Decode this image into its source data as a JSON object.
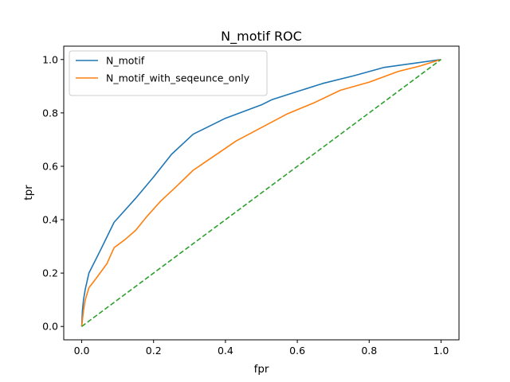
{
  "chart_data": {
    "type": "line",
    "title": "N_motif ROC",
    "xlabel": "fpr",
    "ylabel": "tpr",
    "xlim": [
      -0.05,
      1.05
    ],
    "ylim": [
      -0.05,
      1.05
    ],
    "xticks": [
      "0.0",
      "0.2",
      "0.4",
      "0.6",
      "0.8",
      "1.0"
    ],
    "yticks": [
      "0.0",
      "0.2",
      "0.4",
      "0.6",
      "0.8",
      "1.0"
    ],
    "grid": false,
    "legend_position": "top-left",
    "series": [
      {
        "name": "N_motif",
        "color": "#1f77b4",
        "style": "solid",
        "x": [
          0.0,
          0.002,
          0.005,
          0.01,
          0.02,
          0.05,
          0.09,
          0.15,
          0.2,
          0.25,
          0.31,
          0.4,
          0.5,
          0.53,
          0.6,
          0.67,
          0.76,
          0.84,
          0.92,
          1.0
        ],
        "y": [
          0.0,
          0.06,
          0.1,
          0.14,
          0.2,
          0.28,
          0.39,
          0.48,
          0.56,
          0.645,
          0.72,
          0.78,
          0.83,
          0.85,
          0.88,
          0.91,
          0.94,
          0.97,
          0.985,
          1.0
        ]
      },
      {
        "name": "N_motif_with_seqeunce_only",
        "color": "#ff7f0e",
        "style": "solid",
        "x": [
          0.0,
          0.005,
          0.01,
          0.02,
          0.04,
          0.07,
          0.09,
          0.12,
          0.15,
          0.18,
          0.22,
          0.26,
          0.31,
          0.37,
          0.43,
          0.5,
          0.57,
          0.65,
          0.72,
          0.8,
          0.88,
          0.94,
          1.0
        ],
        "y": [
          0.0,
          0.06,
          0.1,
          0.145,
          0.18,
          0.235,
          0.295,
          0.325,
          0.36,
          0.41,
          0.47,
          0.52,
          0.585,
          0.64,
          0.695,
          0.745,
          0.795,
          0.84,
          0.885,
          0.915,
          0.955,
          0.975,
          1.0
        ]
      },
      {
        "name": "",
        "color": "#2ca02c",
        "style": "dashed",
        "x": [
          0.0,
          1.0
        ],
        "y": [
          0.0,
          1.0
        ]
      }
    ]
  }
}
